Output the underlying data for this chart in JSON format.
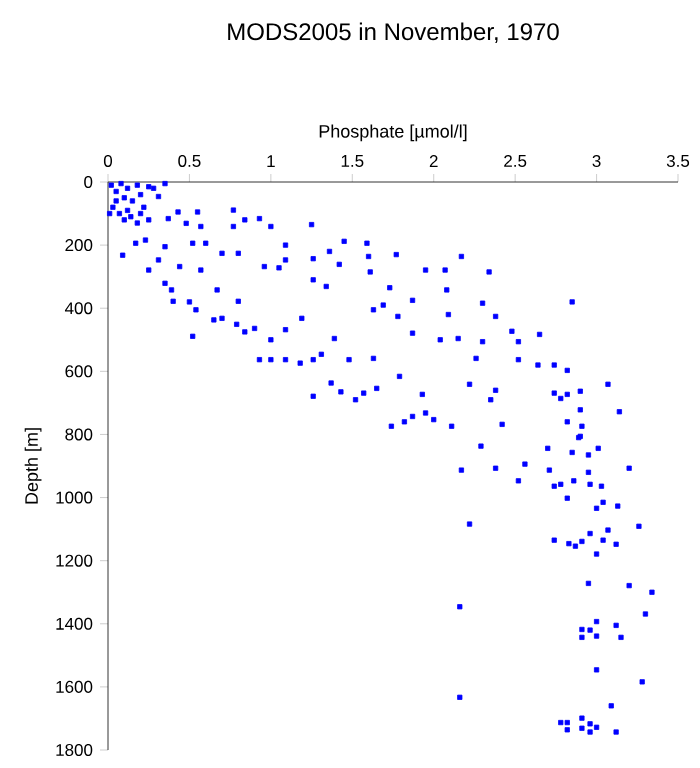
{
  "chart_data": {
    "type": "scatter",
    "title": "MODS2005 in November, 1970",
    "xlabel": "Phosphate [µmol/l]",
    "ylabel": "Depth [m]",
    "xlim": [
      0,
      3.5
    ],
    "xticks": [
      0,
      0.5,
      1,
      1.5,
      2,
      2.5,
      3,
      3.5
    ],
    "ylim": [
      1800,
      0
    ],
    "yticks": [
      0,
      200,
      400,
      600,
      800,
      1000,
      1200,
      1400,
      1600,
      1800
    ],
    "grid": false,
    "marker": "square",
    "series": [
      {
        "color": "#0000ff",
        "x": [
          0.02,
          0.05,
          0.08,
          0.1,
          0.12,
          0.15,
          0.18,
          0.2,
          0.22,
          0.25,
          0.03,
          0.07,
          0.1,
          0.14,
          0.18,
          0.05,
          0.2,
          0.25,
          0.28,
          0.35,
          0.01,
          0.12,
          0.31,
          0.37,
          0.43,
          0.48,
          0.55,
          0.57,
          0.77,
          0.77,
          0.84,
          0.93,
          1.0,
          1.25,
          0.09,
          0.23,
          0.17,
          0.35,
          0.25,
          0.31,
          0.44,
          0.57,
          0.52,
          0.6,
          0.7,
          0.8,
          0.96,
          1.05,
          1.09,
          1.09,
          1.26,
          1.26,
          1.34,
          1.36,
          1.42,
          1.45,
          1.59,
          1.6,
          1.61,
          1.73,
          1.69,
          1.63,
          0.35,
          0.39,
          0.4,
          0.5,
          0.54,
          0.67,
          0.8,
          0.52,
          0.65,
          0.7,
          0.79,
          0.84,
          0.9,
          1.0,
          1.09,
          1.19,
          0.93,
          1.0,
          1.09,
          1.18,
          1.26,
          1.31,
          1.39,
          1.48,
          1.63,
          1.26,
          1.37,
          1.43,
          1.52,
          1.57,
          1.65,
          1.74,
          1.77,
          1.95,
          2.07,
          2.17,
          2.34,
          1.87,
          2.08,
          2.3,
          2.85,
          1.78,
          2.09,
          2.38,
          1.87,
          2.04,
          2.15,
          2.3,
          2.48,
          2.52,
          2.65,
          1.79,
          1.93,
          2.22,
          2.26,
          2.52,
          2.64,
          2.74,
          2.82,
          3.07,
          2.38,
          2.35,
          2.74,
          2.82,
          2.9,
          2.78,
          3.14,
          2.9,
          2.82,
          2.91,
          2.9,
          1.82,
          1.87,
          1.95,
          2.0,
          2.11,
          2.42,
          2.29,
          2.17,
          2.38,
          2.56,
          2.52,
          2.7,
          2.71,
          2.74,
          2.78,
          2.82,
          2.85,
          2.86,
          2.89,
          2.95,
          2.95,
          2.96,
          3.01,
          3.03,
          3.0,
          3.04,
          3.13,
          3.2,
          3.26,
          2.22,
          2.74,
          2.83,
          2.87,
          2.91,
          2.96,
          3.0,
          3.04,
          3.07,
          3.12,
          2.95,
          3.2,
          3.34,
          3.3,
          2.16,
          3.0,
          3.12,
          2.91,
          2.96,
          2.91,
          3.0,
          3.15,
          3.0,
          3.28,
          3.09,
          2.16,
          2.78,
          2.82,
          2.82,
          2.91,
          2.96,
          3.0,
          2.96,
          2.91,
          3.12
        ],
        "values": [
          10,
          30,
          5,
          50,
          20,
          60,
          10,
          40,
          80,
          15,
          80,
          100,
          120,
          110,
          130,
          60,
          100,
          120,
          20,
          5,
          100,
          90,
          46,
          116,
          95,
          131,
          95,
          141,
          89,
          141,
          120,
          116,
          141,
          135,
          232,
          184,
          194,
          205,
          279,
          247,
          268,
          279,
          194,
          194,
          226,
          226,
          268,
          272,
          247,
          200,
          243,
          310,
          331,
          220,
          261,
          188,
          194,
          236,
          285,
          335,
          390,
          405,
          321,
          342,
          378,
          380,
          405,
          342,
          378,
          489,
          437,
          432,
          451,
          475,
          464,
          500,
          468,
          432,
          563,
          563,
          563,
          574,
          563,
          546,
          496,
          563,
          559,
          679,
          637,
          665,
          690,
          669,
          654,
          774,
          230,
          279,
          279,
          236,
          285,
          375,
          342,
          384,
          380,
          426,
          420,
          426,
          479,
          500,
          496,
          506,
          473,
          506,
          483,
          616,
          673,
          641,
          559,
          563,
          580,
          580,
          597,
          641,
          660,
          690,
          669,
          673,
          663,
          686,
          728,
          722,
          760,
          774,
          806,
          760,
          743,
          732,
          753,
          774,
          768,
          837,
          913,
          907,
          894,
          947,
          844,
          913,
          964,
          958,
          1002,
          857,
          947,
          810,
          865,
          920,
          958,
          844,
          964,
          1034,
          1015,
          1027,
          907,
          1091,
          1084,
          1135,
          1146,
          1154,
          1139,
          1114,
          1179,
          1135,
          1103,
          1148,
          1272,
          1279,
          1300,
          1369,
          1346,
          1393,
          1405,
          1418,
          1420,
          1443,
          1439,
          1443,
          1546,
          1584,
          1660,
          1633,
          1713,
          1713,
          1736,
          1699,
          1717,
          1728,
          1743,
          1731,
          1743
        ]
      }
    ]
  }
}
